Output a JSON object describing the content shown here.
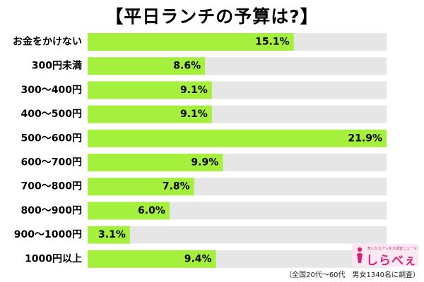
{
  "chart_data": {
    "type": "bar",
    "orientation": "horizontal",
    "title": "【平日ランチの予算は?】",
    "categories": [
      "お金をかけない",
      "300円未満",
      "300〜400円",
      "400〜500円",
      "500〜600円",
      "600〜700円",
      "700〜800円",
      "800〜900円",
      "900〜1000円",
      "1000円以上"
    ],
    "values": [
      15.1,
      8.6,
      9.1,
      9.1,
      21.9,
      9.9,
      7.8,
      6.0,
      3.1,
      9.4
    ],
    "value_labels": [
      "15.1%",
      "8.6%",
      "9.1%",
      "9.1%",
      "21.9%",
      "9.9%",
      "7.8%",
      "6.0%",
      "3.1%",
      "9.4%"
    ],
    "xlim": [
      0,
      21.9
    ],
    "grid": false,
    "bar_color": "#a5f03c",
    "background_color": "#e6e6e6"
  },
  "branding": {
    "tagline": "気になるアレを大調査ニュース!",
    "brand": "しらべぇ",
    "color": "#d6237f"
  },
  "footnote": "（全国20代〜60代　男女1340名に調査）"
}
